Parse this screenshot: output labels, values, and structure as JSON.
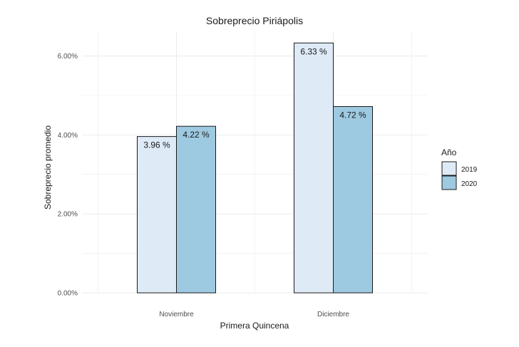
{
  "chart_data": {
    "type": "bar",
    "title": "Sobreprecio Piriápolis",
    "xlabel": "Primera Quincena",
    "ylabel": "Sobreprecio promedio",
    "categories": [
      "Noviembre",
      "Diciembre"
    ],
    "series": [
      {
        "name": "2019",
        "values": [
          3.96,
          6.33
        ],
        "labels": [
          "3.96 %",
          "6.33 %"
        ],
        "color": "#deebf7"
      },
      {
        "name": "2020",
        "values": [
          4.22,
          4.72
        ],
        "labels": [
          "4.22 %",
          "4.72 %"
        ],
        "color": "#9ecae1"
      }
    ],
    "ylim": [
      0,
      6.6
    ],
    "yticks": [
      0,
      2,
      4,
      6
    ],
    "ytick_labels": [
      "0.00%",
      "2.00%",
      "4.00%",
      "6.00%"
    ],
    "legend_title": "Año",
    "legend_position": "right",
    "grid": true,
    "outline_color": "#1a1a1a",
    "grid_color": "#ebebeb"
  }
}
